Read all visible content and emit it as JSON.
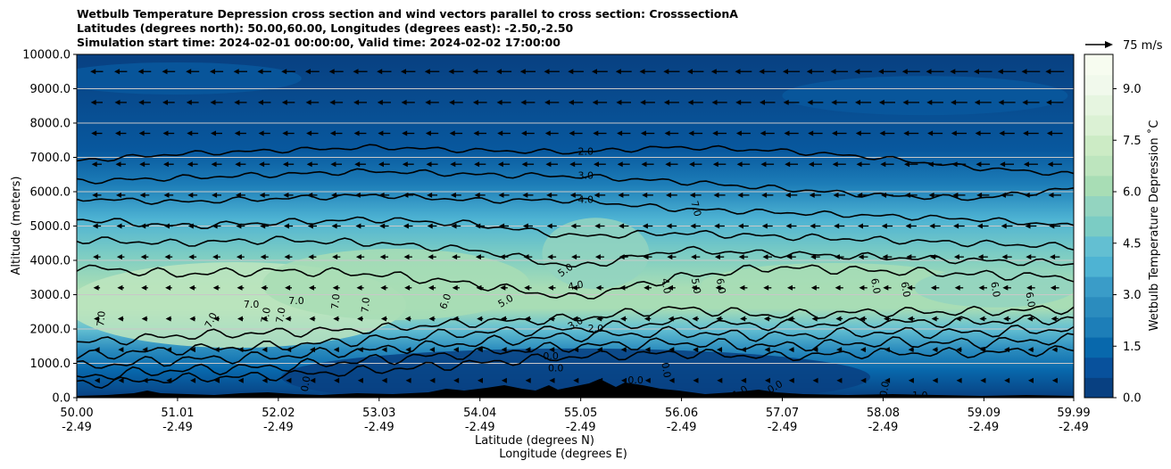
{
  "chart_data": {
    "type": "contour",
    "title_lines": [
      "Wetbulb Temperature Depression cross section and wind vectors parallel to cross section: CrosssectionA",
      "Latitudes (degrees north): 50.00,60.00, Longitudes (degrees east): -2.50,-2.50",
      "Simulation start time: 2024-02-01 00:00:00, Valid time: 2024-02-02 17:00:00"
    ],
    "xlabel_line1": "Latitude (degrees N)",
    "xlabel_line2": "Longitude (degrees E)",
    "ylabel": "Altitude (meters)",
    "xlim": [
      50.0,
      59.99
    ],
    "ylim": [
      0,
      10000
    ],
    "x_ticks": [
      {
        "lat": "50.00",
        "lon": "-2.49",
        "v": 50.0
      },
      {
        "lat": "51.01",
        "lon": "-2.49",
        "v": 51.01
      },
      {
        "lat": "52.02",
        "lon": "-2.49",
        "v": 52.02
      },
      {
        "lat": "53.03",
        "lon": "-2.49",
        "v": 53.03
      },
      {
        "lat": "54.04",
        "lon": "-2.49",
        "v": 54.04
      },
      {
        "lat": "55.05",
        "lon": "-2.49",
        "v": 55.05
      },
      {
        "lat": "56.06",
        "lon": "-2.49",
        "v": 56.06
      },
      {
        "lat": "57.07",
        "lon": "-2.49",
        "v": 57.07
      },
      {
        "lat": "58.08",
        "lon": "-2.49",
        "v": 58.08
      },
      {
        "lat": "59.09",
        "lon": "-2.49",
        "v": 59.09
      },
      {
        "lat": "59.99",
        "lon": "-2.49",
        "v": 59.99
      }
    ],
    "y_ticks": [
      {
        "label": "0.0",
        "v": 0
      },
      {
        "label": "1000.0",
        "v": 1000
      },
      {
        "label": "2000.0",
        "v": 2000
      },
      {
        "label": "3000.0",
        "v": 3000
      },
      {
        "label": "4000.0",
        "v": 4000
      },
      {
        "label": "5000.0",
        "v": 5000
      },
      {
        "label": "6000.0",
        "v": 6000
      },
      {
        "label": "7000.0",
        "v": 7000
      },
      {
        "label": "8000.0",
        "v": 8000
      },
      {
        "label": "9000.0",
        "v": 9000
      },
      {
        "label": "10000.0",
        "v": 10000
      }
    ],
    "grid": "horizontal",
    "colorbar": {
      "label": "Wetbulb Temperature Depression ˚C",
      "range": [
        0,
        10
      ],
      "ticks": [
        {
          "label": "0.0",
          "v": 0
        },
        {
          "label": "1.5",
          "v": 1.5
        },
        {
          "label": "3.0",
          "v": 3.0
        },
        {
          "label": "4.5",
          "v": 4.5
        },
        {
          "label": "6.0",
          "v": 6.0
        },
        {
          "label": "7.5",
          "v": 7.5
        },
        {
          "label": "9.0",
          "v": 9.0
        }
      ],
      "colors": [
        "#084081",
        "#08519c",
        "#0868ac",
        "#1d7eb8",
        "#2b8cbe",
        "#3a9cc8",
        "#4eb3d3",
        "#63bfd2",
        "#7bccc4",
        "#93d4c0",
        "#a8ddb5",
        "#bde5be",
        "#ccebc5",
        "#dbf1d4",
        "#e6f5e0",
        "#f1f9ec",
        "#f7fcf0"
      ]
    },
    "quiver_key": {
      "label": "75 m/s"
    },
    "contour_labels": [
      {
        "text": "2.0",
        "x": 55.1,
        "y": 7150,
        "rot": 0
      },
      {
        "text": "3.0",
        "x": 55.1,
        "y": 6450,
        "rot": 0
      },
      {
        "text": "4.0",
        "x": 55.1,
        "y": 5750,
        "rot": 0
      },
      {
        "text": "7.0",
        "x": 56.2,
        "y": 5500,
        "rot": 75
      },
      {
        "text": "5.0",
        "x": 54.9,
        "y": 3700,
        "rot": -35
      },
      {
        "text": "4.0",
        "x": 55.0,
        "y": 3250,
        "rot": -10
      },
      {
        "text": "5.0",
        "x": 54.3,
        "y": 2800,
        "rot": -30
      },
      {
        "text": "6.0",
        "x": 53.7,
        "y": 2800,
        "rot": -70
      },
      {
        "text": "7.0",
        "x": 50.25,
        "y": 2300,
        "rot": -85
      },
      {
        "text": "7.0",
        "x": 51.35,
        "y": 2250,
        "rot": -65
      },
      {
        "text": "7.0",
        "x": 51.75,
        "y": 2700,
        "rot": 0
      },
      {
        "text": "7.0",
        "x": 52.2,
        "y": 2800,
        "rot": 0
      },
      {
        "text": "7.0",
        "x": 51.9,
        "y": 2400,
        "rot": -80
      },
      {
        "text": "7.0",
        "x": 52.05,
        "y": 2400,
        "rot": -80
      },
      {
        "text": "7.0",
        "x": 52.6,
        "y": 2800,
        "rot": -85
      },
      {
        "text": "7.0",
        "x": 52.9,
        "y": 2700,
        "rot": -85
      },
      {
        "text": "3.0",
        "x": 55.0,
        "y": 2150,
        "rot": -30
      },
      {
        "text": "2.0",
        "x": 55.2,
        "y": 2000,
        "rot": 0
      },
      {
        "text": "4.0",
        "x": 55.9,
        "y": 3250,
        "rot": 80
      },
      {
        "text": "5.0",
        "x": 56.2,
        "y": 3250,
        "rot": 80
      },
      {
        "text": "6.0",
        "x": 56.45,
        "y": 3250,
        "rot": 80
      },
      {
        "text": "6.0",
        "x": 58.0,
        "y": 3250,
        "rot": 80
      },
      {
        "text": "6.0",
        "x": 58.3,
        "y": 3150,
        "rot": 80
      },
      {
        "text": "6.0",
        "x": 59.2,
        "y": 3150,
        "rot": 80
      },
      {
        "text": "6.0",
        "x": 59.55,
        "y": 2850,
        "rot": 80
      },
      {
        "text": "0.0",
        "x": 54.75,
        "y": 1200,
        "rot": 0
      },
      {
        "text": "0.0",
        "x": 54.8,
        "y": 850,
        "rot": 0
      },
      {
        "text": "0.0",
        "x": 55.6,
        "y": 500,
        "rot": 0
      },
      {
        "text": "0.0",
        "x": 55.9,
        "y": 800,
        "rot": 80
      },
      {
        "text": "0.0",
        "x": 52.3,
        "y": 400,
        "rot": -80
      },
      {
        "text": "1.0",
        "x": 56.65,
        "y": 150,
        "rot": -30
      },
      {
        "text": "0.0",
        "x": 57.0,
        "y": 300,
        "rot": -30
      },
      {
        "text": "0.0",
        "x": 58.1,
        "y": 250,
        "rot": -80
      },
      {
        "text": "1.0",
        "x": 58.45,
        "y": 50,
        "rot": 0
      }
    ]
  }
}
